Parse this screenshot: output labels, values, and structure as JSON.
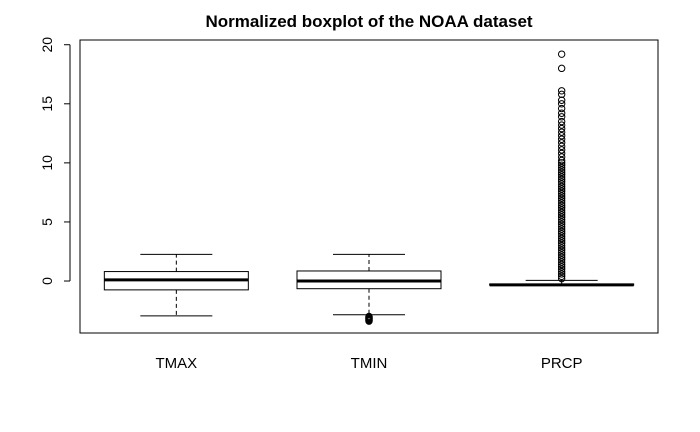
{
  "chart_data": {
    "type": "boxplot",
    "title": "Normalized boxplot of the NOAA dataset",
    "xlabel": "",
    "ylabel": "",
    "ylim": [
      -4.4,
      20.4
    ],
    "yticks": [
      0,
      5,
      10,
      15,
      20
    ],
    "grid": false,
    "categories": [
      "TMAX",
      "TMIN",
      "PRCP"
    ],
    "boxes": [
      {
        "category": "TMAX",
        "whisker_low": -2.95,
        "q1": -0.75,
        "median": 0.1,
        "q3": 0.8,
        "whisker_high": 2.25,
        "outliers": []
      },
      {
        "category": "TMIN",
        "whisker_low": -2.85,
        "q1": -0.65,
        "median": 0.0,
        "q3": 0.85,
        "whisker_high": 2.25,
        "outliers": [
          -3.0,
          -3.05,
          -3.1,
          -3.15,
          -3.2,
          -3.25,
          -3.3,
          -3.35,
          -3.4
        ]
      },
      {
        "category": "PRCP",
        "whisker_low": -0.35,
        "q1": -0.35,
        "median": -0.33,
        "q3": -0.25,
        "whisker_high": 0.05,
        "outliers": [
          0.2,
          0.4,
          0.6,
          0.8,
          1.0,
          1.2,
          1.4,
          1.6,
          1.8,
          2.0,
          2.2,
          2.4,
          2.6,
          2.8,
          3.0,
          3.2,
          3.4,
          3.6,
          3.8,
          4.0,
          4.2,
          4.4,
          4.6,
          4.8,
          5.0,
          5.2,
          5.4,
          5.6,
          5.8,
          6.0,
          6.2,
          6.4,
          6.6,
          6.8,
          7.0,
          7.2,
          7.4,
          7.6,
          7.8,
          8.0,
          8.2,
          8.4,
          8.6,
          8.8,
          9.0,
          9.2,
          9.4,
          9.6,
          9.8,
          10.0,
          10.2,
          10.5,
          10.8,
          11.1,
          11.4,
          11.7,
          12.0,
          12.3,
          12.6,
          12.9,
          13.2,
          13.5,
          13.9,
          14.2,
          14.6,
          15.0,
          15.3,
          15.8,
          16.1,
          18.0,
          19.2
        ]
      }
    ]
  }
}
